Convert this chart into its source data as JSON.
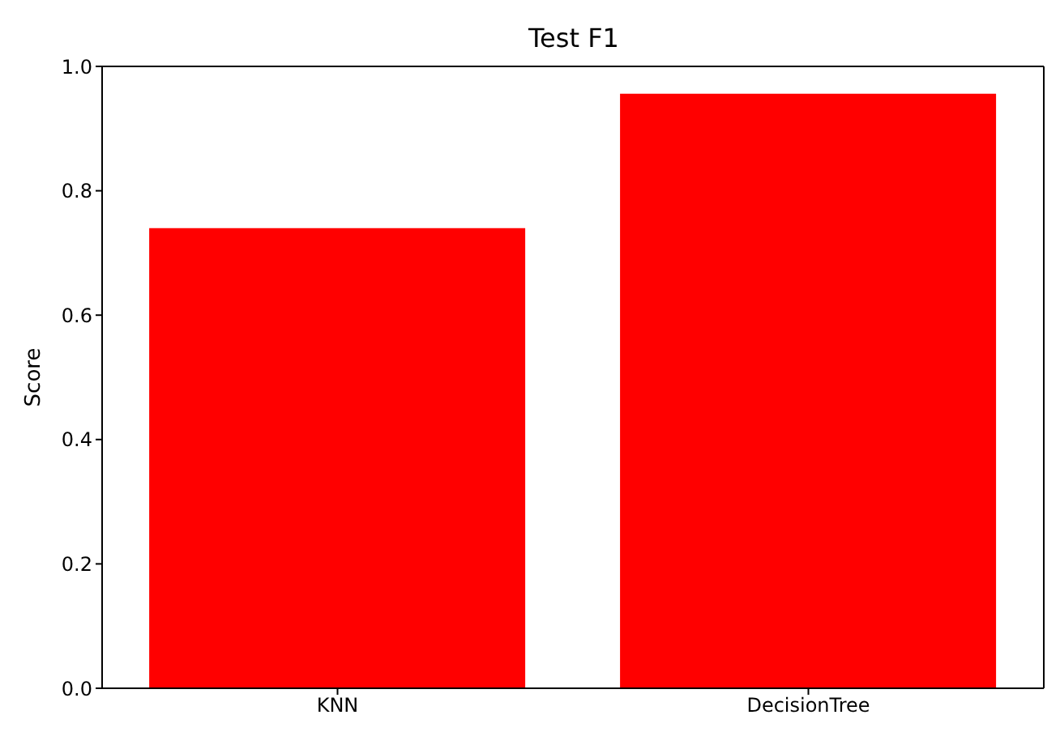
{
  "chart_data": {
    "type": "bar",
    "title": "Test F1",
    "ylabel": "Score",
    "categories": [
      "KNN",
      "DecisionTree"
    ],
    "values": [
      0.74,
      0.956
    ],
    "color": "#ff0000",
    "ylim": [
      0,
      1
    ],
    "yticks": [
      {
        "value": 0,
        "label": "0.0"
      },
      {
        "value": 0.2,
        "label": "0.2"
      },
      {
        "value": 0.4,
        "label": "0.4"
      },
      {
        "value": 0.6,
        "label": "0.6"
      },
      {
        "value": 0.8,
        "label": "0.8"
      },
      {
        "value": 1,
        "label": "1.0"
      }
    ],
    "grid": false
  }
}
